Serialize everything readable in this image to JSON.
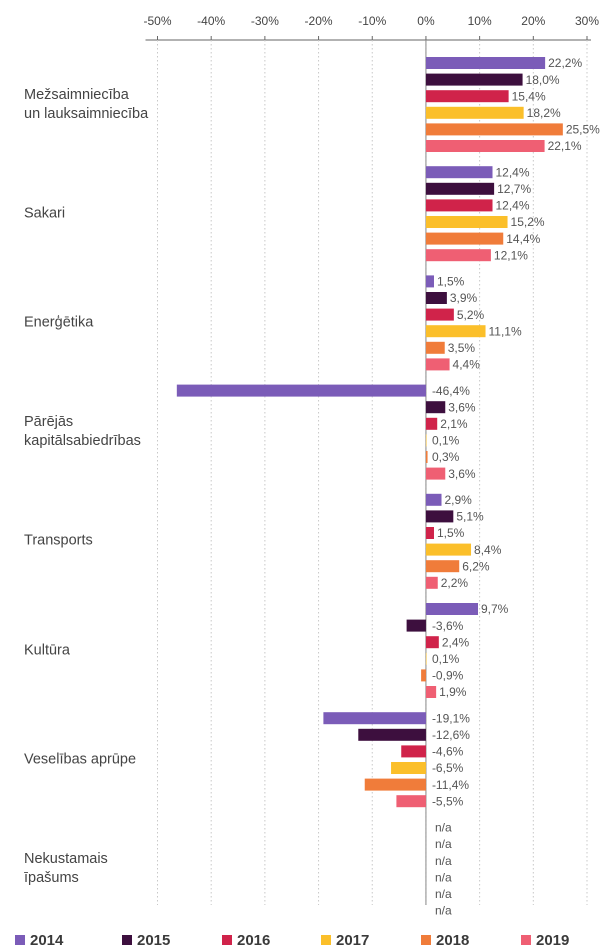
{
  "chart_data": {
    "type": "bar",
    "orientation": "horizontal",
    "categories": [
      "Mežsaimniecība\nun lauksaimniecība",
      "Sakari",
      "Enerģētika",
      "Pārējās\nkapitālsabiedrības",
      "Transports",
      "Kultūra",
      "Veselības aprūpe",
      "Nekustamais\nīpašums"
    ],
    "series": [
      {
        "name": "2014",
        "color": "#7b5cb8",
        "values": [
          22.2,
          12.4,
          1.5,
          -46.4,
          2.9,
          9.7,
          -19.1,
          null
        ],
        "value_labels": [
          "22,2%",
          "12,4%",
          "1,5%",
          "-46,4%",
          "2,9%",
          "9,7%",
          "-19,1%",
          "n/a"
        ]
      },
      {
        "name": "2015",
        "color": "#3d0f3e",
        "values": [
          18.0,
          12.7,
          3.9,
          3.6,
          5.1,
          -3.6,
          -12.6,
          null
        ],
        "value_labels": [
          "18,0%",
          "12,7%",
          "3,9%",
          "3,6%",
          "5,1%",
          "-3,6%",
          "-12,6%",
          "n/a"
        ]
      },
      {
        "name": "2016",
        "color": "#d0234a",
        "values": [
          15.4,
          12.4,
          5.2,
          2.1,
          1.5,
          2.4,
          -4.6,
          null
        ],
        "value_labels": [
          "15,4%",
          "12,4%",
          "5,2%",
          "2,1%",
          "1,5%",
          "2,4%",
          "-4,6%",
          "n/a"
        ]
      },
      {
        "name": "2017",
        "color": "#fbbf2a",
        "values": [
          18.2,
          15.2,
          11.1,
          0.1,
          8.4,
          0.1,
          -6.5,
          null
        ],
        "value_labels": [
          "18,2%",
          "15,2%",
          "11,1%",
          "0,1%",
          "8,4%",
          "0,1%",
          "-6,5%",
          "n/a"
        ]
      },
      {
        "name": "2018",
        "color": "#f07c3a",
        "values": [
          25.5,
          14.4,
          3.5,
          0.3,
          6.2,
          -0.9,
          -11.4,
          null
        ],
        "value_labels": [
          "25,5%",
          "14,4%",
          "3,5%",
          "0,3%",
          "6,2%",
          "-0,9%",
          "-11,4%",
          "n/a"
        ]
      },
      {
        "name": "2019",
        "color": "#ef5f73",
        "values": [
          22.1,
          12.1,
          4.4,
          3.6,
          2.2,
          1.9,
          -5.5,
          null
        ],
        "value_labels": [
          "22,1%",
          "12,1%",
          "4,4%",
          "3,6%",
          "2,2%",
          "1,9%",
          "-5,5%",
          "n/a"
        ]
      }
    ],
    "xlim": [
      -50,
      30
    ],
    "xticks": [
      {
        "value": -50,
        "label": "-50%"
      },
      {
        "value": -40,
        "label": "-40%"
      },
      {
        "value": -30,
        "label": "-30%"
      },
      {
        "value": -20,
        "label": "-20%"
      },
      {
        "value": -10,
        "label": "-10%"
      },
      {
        "value": 0,
        "label": "0%"
      },
      {
        "value": 10,
        "label": "10%"
      },
      {
        "value": 20,
        "label": "20%"
      },
      {
        "value": 30,
        "label": "30%"
      }
    ],
    "grid": true,
    "legend": "bottom"
  }
}
